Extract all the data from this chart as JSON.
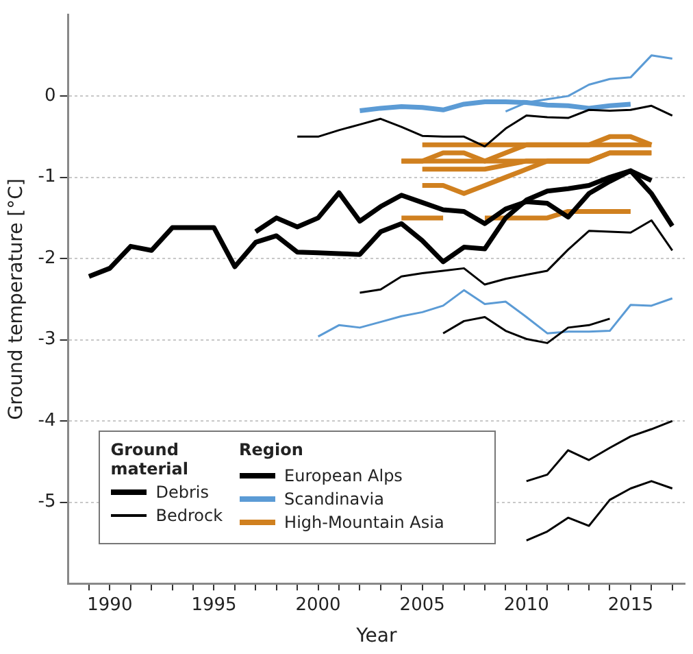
{
  "chart_data": {
    "type": "line",
    "xlabel": "Year",
    "ylabel": "Ground temperature [°C]",
    "xlim": [
      1988,
      2017.6
    ],
    "ylim": [
      -6,
      1
    ],
    "xticks": [
      {
        "value": 1989,
        "label": null
      },
      1990,
      {
        "value": 1991,
        "label": null
      },
      {
        "value": 1992,
        "label": null
      },
      {
        "value": 1993,
        "label": null
      },
      {
        "value": 1994,
        "label": null
      },
      1995,
      {
        "value": 1996,
        "label": null
      },
      {
        "value": 1997,
        "label": null
      },
      {
        "value": 1998,
        "label": null
      },
      {
        "value": 1999,
        "label": null
      },
      2000,
      {
        "value": 2001,
        "label": null
      },
      {
        "value": 2002,
        "label": null
      },
      {
        "value": 2003,
        "label": null
      },
      {
        "value": 2004,
        "label": null
      },
      2005,
      {
        "value": 2006,
        "label": null
      },
      {
        "value": 2007,
        "label": null
      },
      {
        "value": 2008,
        "label": null
      },
      {
        "value": 2009,
        "label": null
      },
      2010,
      {
        "value": 2011,
        "label": null
      },
      {
        "value": 2012,
        "label": null
      },
      {
        "value": 2013,
        "label": null
      },
      {
        "value": 2014,
        "label": null
      },
      2015,
      {
        "value": 2016,
        "label": null
      },
      {
        "value": 2017,
        "label": null
      }
    ],
    "yticks": [
      -5,
      -4,
      -3,
      -2,
      -1,
      0
    ],
    "grid": "y",
    "marker": "none",
    "legend": "bottom left",
    "legend_title": "Region",
    "annotations": [
      "Ground material",
      "Debris",
      "Bedrock"
    ],
    "series": [
      {
        "name": "European Alps",
        "color": "#000000",
        "x": [
          1989,
          1990,
          1991,
          1992,
          1993,
          1994,
          1995,
          1996,
          1997,
          1998,
          1999,
          2000,
          2001,
          2002,
          2003,
          2004,
          2005,
          2006,
          2007,
          2008,
          2009,
          2010,
          2011,
          2012,
          2013,
          2014,
          2015,
          2016
        ],
        "values": [
          -2.22,
          -2.12,
          -1.85,
          -1.9,
          -1.62,
          -1.62,
          -1.62,
          -2.1,
          -1.8,
          -1.72,
          -1.92,
          -1.93,
          -1.94,
          -1.95,
          -1.67,
          -1.57,
          -1.78,
          -2.04,
          -1.86,
          -1.88,
          -1.5,
          -1.28,
          -1.17,
          -1.14,
          -1.1,
          -1.0,
          -0.92,
          -1.04
        ]
      },
      {
        "color": "#000000",
        "x": [
          1997,
          1998,
          1999,
          2000,
          2001,
          2002,
          2003,
          2004,
          2005,
          2006,
          2007,
          2008,
          2009,
          2010,
          2011,
          2012,
          2013,
          2014,
          2015,
          2016,
          2017
        ],
        "values": [
          -1.67,
          -1.5,
          -1.61,
          -1.5,
          -1.19,
          -1.54,
          -1.36,
          -1.22,
          -1.31,
          -1.4,
          -1.42,
          -1.57,
          -1.39,
          -1.3,
          -1.32,
          -1.49,
          -1.2,
          -1.05,
          -0.92,
          -1.2,
          -1.6
        ]
      },
      {
        "color": "#000000",
        "x": [
          1999,
          2000,
          2001,
          2002,
          2003,
          2004,
          2005,
          2006,
          2007,
          2008,
          2009,
          2010,
          2011,
          2012,
          2013,
          2014,
          2015,
          2016,
          2017
        ],
        "values": [
          -0.5,
          -0.5,
          -0.42,
          -0.35,
          -0.28,
          -0.38,
          -0.49,
          -0.5,
          -0.5,
          -0.62,
          -0.4,
          -0.24,
          -0.26,
          -0.27,
          -0.17,
          -0.18,
          -0.17,
          -0.12,
          -0.24
        ]
      },
      {
        "color": "#000000",
        "x": [
          2002,
          2003,
          2004,
          2005,
          2006,
          2007,
          2008,
          2009,
          2010,
          2011,
          2012,
          2013,
          2014,
          2015,
          2016,
          2017
        ],
        "values": [
          -2.42,
          -2.38,
          -2.22,
          -2.18,
          -2.15,
          -2.12,
          -2.32,
          -2.25,
          -2.2,
          -2.15,
          -1.89,
          -1.66,
          -1.67,
          -1.68,
          -1.53,
          -1.9
        ]
      },
      {
        "color": "#000000",
        "x": [
          2006,
          2007,
          2008,
          2009,
          2010,
          2011,
          2012,
          2013,
          2014
        ],
        "values": [
          -2.92,
          -2.77,
          -2.72,
          -2.89,
          -2.99,
          -3.04,
          -2.85,
          -2.82,
          -2.74
        ]
      },
      {
        "color": "#000000",
        "x": [
          2010,
          2011,
          2012,
          2013,
          2014,
          2015,
          2016,
          2017
        ],
        "values": [
          -4.74,
          -4.66,
          -4.36,
          -4.48,
          -4.33,
          -4.19,
          -4.1,
          -4.0
        ]
      },
      {
        "color": "#000000",
        "x": [
          2010,
          2011,
          2012,
          2013,
          2014,
          2015,
          2016,
          2017
        ],
        "values": [
          -5.47,
          -5.36,
          -5.19,
          -5.29,
          -4.97,
          -4.83,
          -4.74,
          -4.83
        ]
      },
      {
        "name": "Scandinavia",
        "color": "#5b9bd5",
        "x": [
          2002,
          2003,
          2004,
          2005,
          2006,
          2007,
          2008,
          2009,
          2010,
          2011,
          2012,
          2013,
          2014,
          2015
        ],
        "values": [
          -0.18,
          -0.15,
          -0.13,
          -0.14,
          -0.17,
          -0.1,
          -0.07,
          -0.07,
          -0.08,
          -0.11,
          -0.12,
          -0.15,
          -0.12,
          -0.1
        ]
      },
      {
        "color": "#5b9bd5",
        "x": [
          2009,
          2010,
          2011,
          2012,
          2013,
          2014,
          2015,
          2016,
          2017
        ],
        "values": [
          -0.19,
          -0.08,
          -0.04,
          0,
          0.14,
          0.21,
          0.23,
          0.5,
          0.46
        ]
      },
      {
        "color": "#5b9bd5",
        "x": [
          2000,
          2001,
          2002,
          2003,
          2004,
          2005,
          2006,
          2007,
          2008,
          2009,
          2010,
          2011,
          2012,
          2013,
          2014,
          2015,
          2016,
          2017
        ],
        "values": [
          -2.96,
          -2.82,
          -2.85,
          -2.78,
          -2.71,
          -2.66,
          -2.58,
          -2.39,
          -2.56,
          -2.53,
          -2.72,
          -2.92,
          -2.9,
          -2.9,
          -2.89,
          -2.57,
          -2.58,
          -2.49
        ]
      },
      {
        "name": "High-Mountain Asia",
        "color": "#d0801f",
        "x": [
          2004,
          2005,
          2006,
          2007,
          2008,
          2009,
          2010,
          2011,
          2012,
          2013,
          2014,
          2015
        ],
        "values": [
          -1.5,
          -1.5,
          -1.5,
          null,
          -1.5,
          -1.5,
          -1.5,
          -1.5,
          -1.42,
          -1.42,
          -1.42,
          -1.42
        ]
      },
      {
        "color": "#d0801f",
        "x": [
          2005,
          2006,
          2007,
          2008,
          2009,
          2010,
          2011,
          2012,
          2013,
          2014,
          2015,
          2016
        ],
        "values": [
          -0.6,
          -0.6,
          -0.6,
          -0.6,
          -0.6,
          -0.6,
          -0.6,
          -0.6,
          -0.6,
          -0.5,
          -0.5,
          -0.6
        ]
      },
      {
        "color": "#d0801f",
        "x": [
          2004,
          2005,
          2006,
          2007,
          2008,
          2009,
          2010,
          2011,
          2012,
          2013,
          2014,
          2015,
          2016
        ],
        "values": [
          -0.8,
          -0.8,
          -0.7,
          -0.7,
          -0.8,
          -0.7,
          -0.6,
          -0.6,
          -0.6,
          -0.6,
          -0.6,
          -0.6,
          -0.6
        ]
      },
      {
        "color": "#d0801f",
        "x": [
          2004,
          2005,
          2006,
          2007,
          2008,
          2009,
          2010,
          2011,
          2012,
          2013,
          2014,
          2015,
          2016
        ],
        "values": [
          -0.8,
          -0.8,
          -0.8,
          -0.8,
          -0.8,
          -0.8,
          -0.8,
          -0.8,
          -0.8,
          -0.8,
          -0.7,
          -0.7,
          -0.7
        ]
      },
      {
        "color": "#d0801f",
        "x": [
          2005,
          2006,
          2007,
          2008,
          2009,
          2010,
          2011,
          2012,
          2013,
          2014,
          2015,
          2016
        ],
        "values": [
          -0.9,
          -0.9,
          -0.9,
          -0.9,
          -0.85,
          -0.8,
          -0.8,
          -0.8,
          -0.8,
          -0.7,
          -0.7,
          -0.7
        ]
      },
      {
        "color": "#d0801f",
        "x": [
          2005,
          2006,
          2007,
          2008,
          2009,
          2010,
          2011,
          2012,
          2013
        ],
        "values": [
          -1.1,
          -1.1,
          -1.2,
          -1.1,
          -1.0,
          -0.9,
          -0.8,
          -0.8,
          -0.8
        ]
      }
    ]
  }
}
